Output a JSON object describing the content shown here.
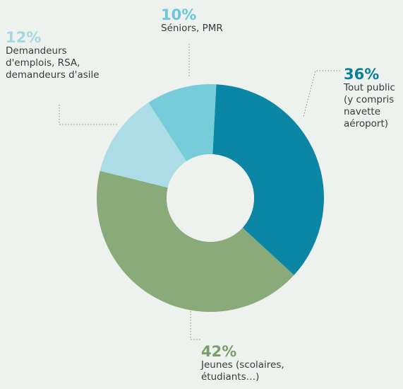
{
  "chart_data": {
    "type": "donut",
    "categories": [
      [
        "Tout public",
        "(y compris",
        "navette",
        "aéroport)"
      ],
      [
        "Jeunes (scolaires,",
        "étudiants…)"
      ],
      [
        "Demandeurs",
        "d'emplois, RSA,",
        "demandeurs d'asile"
      ],
      [
        "Séniors, PMR"
      ]
    ],
    "values": [
      36,
      42,
      12,
      10
    ],
    "value_labels": [
      "36%",
      "42%",
      "12%",
      "10%"
    ],
    "colors": [
      "#0b87a5",
      "#8aaa7a",
      "#acdde6",
      "#76ccd9"
    ],
    "label_colors": [
      "#0b7f9a",
      "#7a9e6a",
      "#a3d8e3",
      "#6fc6d6"
    ]
  }
}
